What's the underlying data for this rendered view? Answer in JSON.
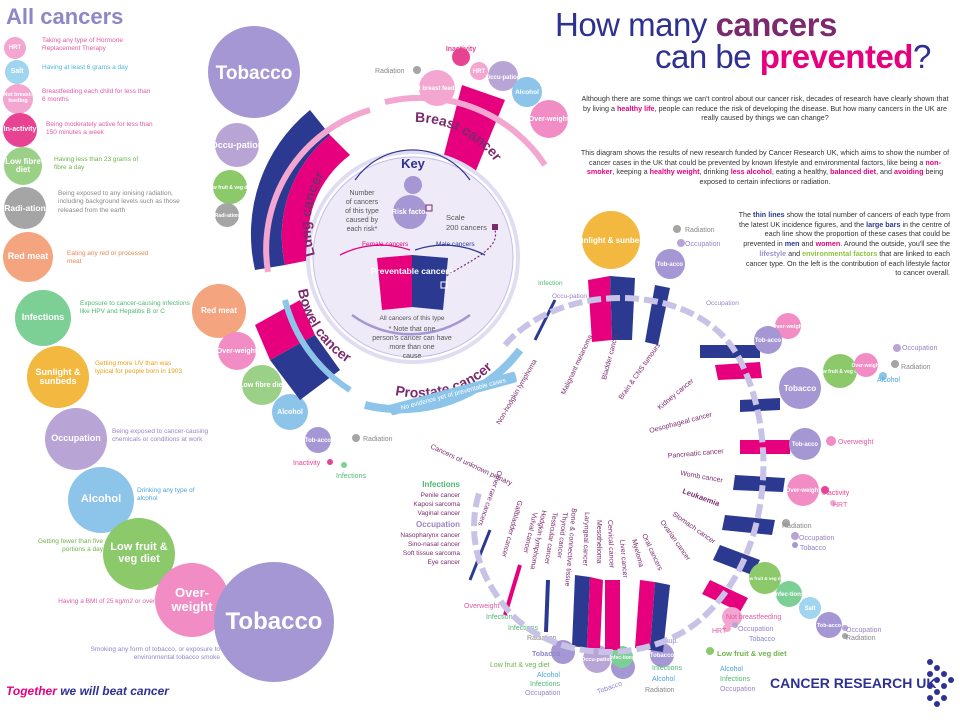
{
  "legend": {
    "title": "All cancers",
    "items": [
      {
        "label": "HRT",
        "desc": "Taking any type of Hormone Replacement Therapy",
        "color": "#f3a6cf"
      },
      {
        "label": "Salt",
        "desc": "Having at least 6 grams a day",
        "color": "#9fd5ee"
      },
      {
        "label": "Not breast-feeding",
        "desc": "Breastfeeding each child for less than 6 months",
        "color": "#f3a6cf"
      },
      {
        "label": "In-activity",
        "desc": "Being moderately active for less than 150 minutes a week",
        "color": "#e84393"
      },
      {
        "label": "Low fibre diet",
        "desc": "Having less than 23 grams of fibre a day",
        "color": "#9bd187"
      },
      {
        "label": "Radi-ation",
        "desc": "Being exposed to any ionising radiation, including background levels such as those released from the earth",
        "color": "#a5a5a5"
      },
      {
        "label": "Red meat",
        "desc": "Eating any red or processed meat",
        "color": "#f4a47e"
      },
      {
        "label": "Infections",
        "desc": "Exposure to cancer-causing infections like HPV and Hepatitis B or C",
        "color": "#7ccf95"
      },
      {
        "label": "Sunlight & sunbeds",
        "desc": "Getting more UV than was typical for people born in 1903",
        "color": "#f3b83f"
      },
      {
        "label": "Occupation",
        "desc": "Being exposed to cancer-causing chemicals or conditions at work",
        "color": "#b9a4d6"
      },
      {
        "label": "Alcohol",
        "desc": "Drinking any type of alcohol",
        "color": "#8cc4ea"
      },
      {
        "label": "Low fruit & veg diet",
        "desc": "Getting fewer than five portions a day",
        "color": "#8bc96a"
      },
      {
        "label": "Over-weight",
        "desc": "Having a BMI of 25 kg/m2 or over",
        "color": "#f18cc4"
      },
      {
        "label": "Tobacco",
        "desc": "Smoking any form of tobacco, or exposure to environmental tobacco smoke",
        "color": "#a497d4"
      }
    ]
  },
  "headline": {
    "l1a": "How many ",
    "l1b": "cancers",
    "l2a": "can be ",
    "l2b": "prevented",
    "l2c": "?"
  },
  "paragraphs": {
    "p1a": "Although there are some things we can't control about our cancer risk, decades of research have clearly shown that by living a ",
    "p1b": "healthy life",
    "p1c": ", people can reduce the risk of developing the disease. But how many cancers in the UK are really caused by things we can change?",
    "p2a": "This diagram shows the results of new research funded by Cancer Research UK, which aims to show the number of cancer cases in the UK that could be prevented by known lifestyle and environmental factors, like being a ",
    "p2b": "non-smoker",
    "p2c": ", keeping a ",
    "p2d": "healthy weight",
    "p2e": ", drinking ",
    "p2f": "less alcohol",
    "p2g": ", eating a healthy, ",
    "p2h": "balanced diet",
    "p2i": ", and ",
    "p2j": "avoiding",
    "p2k": " being exposed to certain infections or radiation.",
    "p3a": "The ",
    "p3b": "thin lines",
    "p3c": " show the total number of cancers of each type from the latest UK incidence figures, and the ",
    "p3d": "large bars",
    "p3e": " in the centre of each line show the proportion of these cases that could be prevented in ",
    "p3f": "men",
    "p3g": " and ",
    "p3h": "women",
    "p3i": ". Around the outside, you'll see the ",
    "p3j": "lifestyle",
    "p3k": " and ",
    "p3l": "environmental factors",
    "p3m": " that are linked to each cancer type. On the left is the contribution of each lifestyle factor to cancer overall."
  },
  "key": {
    "title": "Key",
    "number_label": "Number of cancers of this type caused by each risk*",
    "risk_factor": "Risk factor",
    "scale": "Scale",
    "scale_value": "200 cancers",
    "female": "Female cancers",
    "male": "Male cancers",
    "preventable": "Preventable cancers",
    "all_cancers": "All cancers of this type",
    "note": "* Note that one person's cancer can have more than one cause"
  },
  "cancers_top": {
    "lung": "Lung cancer",
    "breast": "Breast cancer",
    "bowel": "Bowel cancer",
    "prostate": "Prostate cancer",
    "prostate_note": "No evidence yet of preventable cases"
  },
  "top_factors": {
    "tobacco": "Tobacco",
    "occupation": "Occu-pation",
    "low_fruit": "Low fruit & veg diet",
    "radiation": "Radi-ation",
    "inactivity": "Inactivity",
    "not_breastfeeding": "Not breast feeding",
    "hrt": "HRT",
    "occupation2": "Occu-pation",
    "alcohol": "Alcohol",
    "overweight": "Over-weight",
    "radiation_lbl": "Radiation",
    "red_meat": "Red meat",
    "overweight2": "Over-weight",
    "low_fibre": "Low fibre diet",
    "alcohol2": "Alcohol",
    "tobacco2": "Tob-acco",
    "radiation2": "Radiation",
    "inactivity2": "Inactivity",
    "infections": "Infections"
  },
  "spiral_cancers": [
    "Non-hodgkin lymphoma",
    "Malignant melanoma",
    "Bladder cancer",
    "Brain & CNS tumours",
    "Kidney cancer",
    "Oesophageal cancer",
    "Pancreatic cancer",
    "Womb cancer",
    "Leukaemia",
    "Stomach cancer",
    "Ovarian cancer",
    "Oral cancers",
    "Myeloma",
    "Liver cancer",
    "Cervical cancer",
    "Mesothelioma",
    "Laryngeal cancer",
    "Bone & connective tissue",
    "Thyroid cancer",
    "Testicular cancer",
    "Hodgkin lymphoma",
    "Vulval cancer",
    "Gallbladder cancer",
    "Other rare cancers",
    "Cancers of unknown primary"
  ],
  "spiral_factors": {
    "sunlight": "Sunlight & sunbeds",
    "radiation": "Radiation",
    "occupation": "Occupation",
    "tobacco": "Tob-acco",
    "infection": "Infection",
    "occupation2": "Occu-pation",
    "occupation3": "Occupation",
    "overweight": "Over-weight",
    "tobacco3": "Tob-acco",
    "occupation4": "Occupation",
    "low_fruit": "Low fruit & veg diet",
    "overweight3": "Over-weight",
    "radiation3": "Radiation",
    "alcohol3": "Alcohol",
    "tobacco4": "Tobacco",
    "tobacco5": "Tob-acco",
    "overweight4": "Overweight",
    "overweight5": "Over-weight",
    "inactivity5": "Inactivity",
    "hrt5": "HRT",
    "radiation6": "Radiation",
    "occupation6": "Occupation",
    "tobacco6": "Tobacco",
    "low_fruit7": "Low fruit & veg diet",
    "infections7": "Infec-tions",
    "salt7": "Salt",
    "tobacco7": "Tob-acco",
    "occupation7": "Occupation",
    "radiation7": "Radiation",
    "not_breastfeeding8": "Not breastfeeding",
    "hrt8": "HRT",
    "occupation8": "Occupation",
    "tobacco8": "Tobacco",
    "low_fruit9": "Low fruit & veg diet",
    "alcohol9": "Alcohol",
    "infections9": "Infections",
    "occupation9": "Occupation",
    "tobacco10": "Tobacco",
    "infections10": "Infections",
    "alcohol10": "Alcohol",
    "radiation10": "Radiation",
    "occup11": "Occup.",
    "tobacco11": "Tobacco",
    "occupation11": "Occupation",
    "occupation12": "Occu-pation",
    "infec12": "Infec-tions",
    "tobacco13": "Tobacco",
    "low_fruit13": "Low fruit & veg diet",
    "alcohol13": "Alcohol",
    "infections13": "Infections",
    "occupation13": "Occupation",
    "overweight14": "Overweight",
    "infections14": "Infections",
    "infections15": "Infections",
    "radiation15": "Radiation",
    "infections_head": "Infections",
    "infections_list": [
      "Penile cancer",
      "Kaposi sarcoma",
      "Vaginal cancer"
    ],
    "occupation_head": "Occupation",
    "occupation_list": [
      "Nasopharynx cancer",
      "Sino-nasal cancer",
      "Soft tissue sarcoma",
      "Eye cancer"
    ]
  },
  "footer": {
    "tag_a": "Together",
    "tag_b": " we will beat cancer",
    "logo": "CANCER RESEARCH UK"
  }
}
